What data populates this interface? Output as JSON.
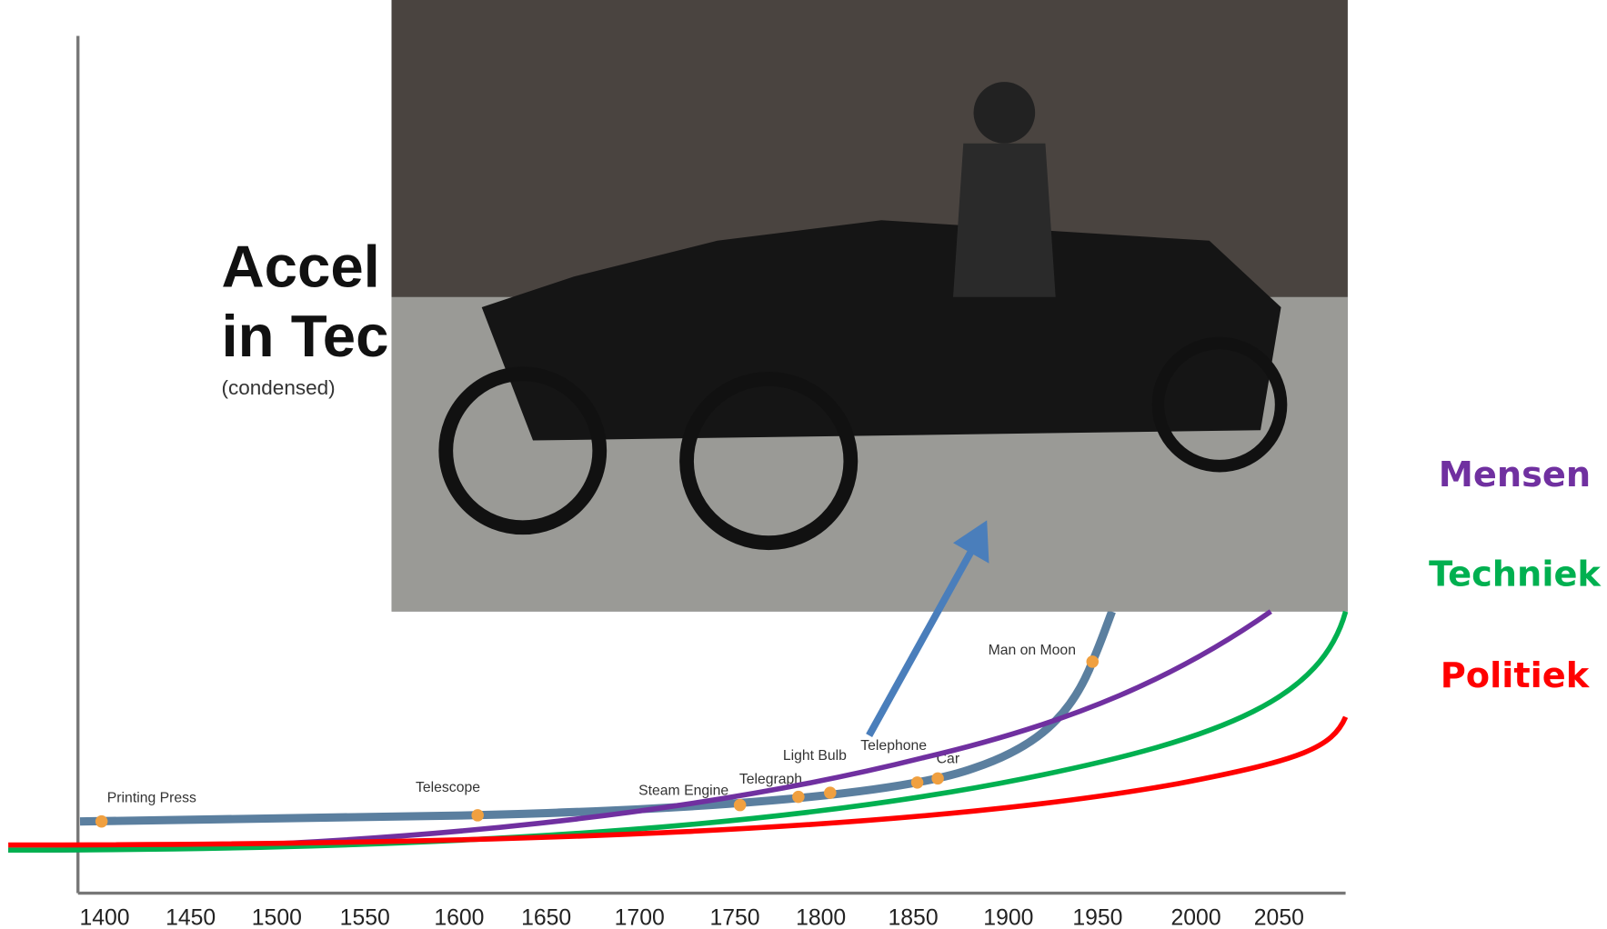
{
  "title_lines": [
    "Accel",
    "in Tec"
  ],
  "subtitle": "(condensed)",
  "x_ticks": [
    "1400",
    "1450",
    "1500",
    "1550",
    "1600",
    "1650",
    "1700",
    "1750",
    "1800",
    "1850",
    "1900",
    "1950",
    "2000",
    "2050"
  ],
  "events": [
    "Printing Press",
    "Telescope",
    "Steam Engine",
    "Telegraph",
    "Light Bulb",
    "Telephone",
    "Car",
    "Man on Moon"
  ],
  "legend": [
    {
      "name": "Mensen",
      "color": "#7030a0"
    },
    {
      "name": "Techniek",
      "color": "#00b050"
    },
    {
      "name": "Politiek",
      "color": "#ff0000"
    }
  ]
}
